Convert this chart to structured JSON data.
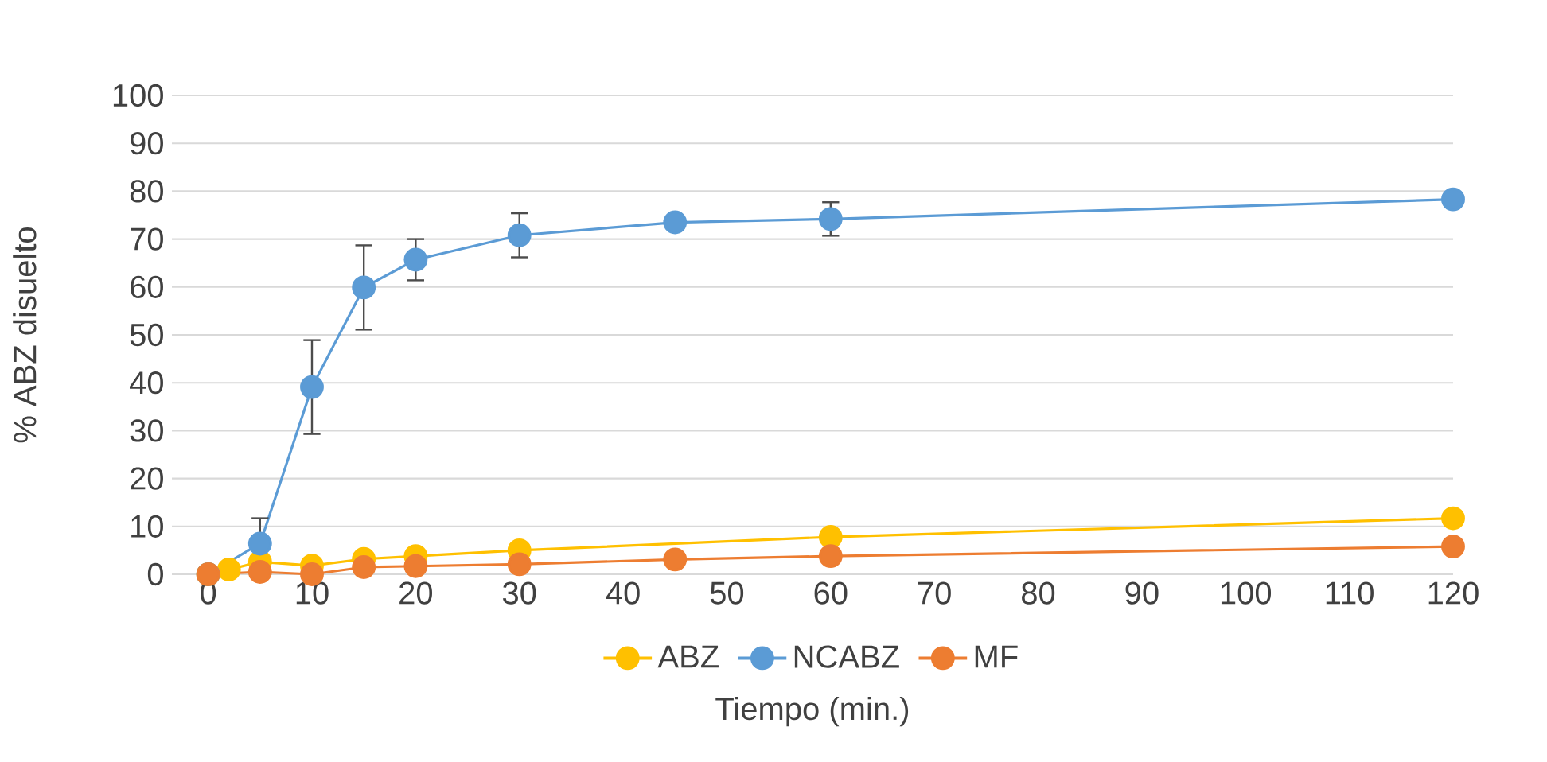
{
  "chart_data": {
    "type": "line",
    "xlabel": "Tiempo (min.)",
    "ylabel": "% ABZ disuelto",
    "xlim": [
      -3.5,
      120
    ],
    "xticks": [
      0,
      10,
      20,
      30,
      40,
      50,
      60,
      70,
      80,
      90,
      100,
      110,
      120
    ],
    "ylim": [
      0,
      100
    ],
    "yticks": [
      0,
      10,
      20,
      30,
      40,
      50,
      60,
      70,
      80,
      90,
      100
    ],
    "grid": "y",
    "legend": "bottom",
    "marker": "circle",
    "line_style": "solid",
    "series": [
      {
        "name": "ABZ",
        "color": "#ffc000",
        "x": [
          0,
          2,
          5,
          10,
          15,
          20,
          30,
          60,
          120
        ],
        "values": [
          0,
          1,
          2.6,
          1.8,
          3.2,
          3.8,
          5,
          7.8,
          11.7
        ]
      },
      {
        "name": "NCABZ",
        "color": "#5b9bd5",
        "x": [
          0,
          5,
          10,
          15,
          20,
          30,
          45,
          60,
          120
        ],
        "values": [
          0,
          6.4,
          39.1,
          59.9,
          65.7,
          70.8,
          73.5,
          74.2,
          78.3
        ],
        "errors": [
          null,
          5.3,
          9.8,
          8.8,
          4.3,
          4.6,
          null,
          3.5,
          null
        ]
      },
      {
        "name": "MF",
        "color": "#ed7d31",
        "x": [
          0,
          5,
          10,
          15,
          20,
          30,
          45,
          60,
          120
        ],
        "values": [
          0,
          0.5,
          0,
          1.5,
          1.7,
          2.1,
          3.1,
          3.8,
          5.8
        ]
      }
    ]
  }
}
